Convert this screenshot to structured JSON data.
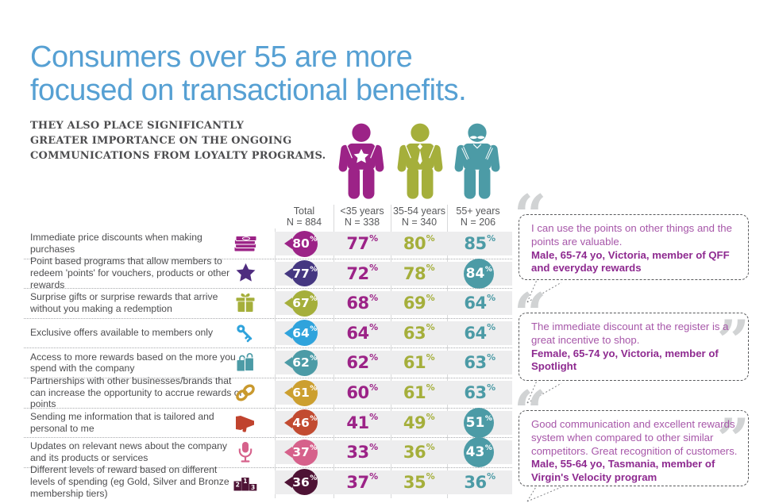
{
  "unit": "%",
  "title": {
    "lines": [
      "Consumers over 55 are more",
      "focused on transactional benefits."
    ],
    "color": "#56A0D3"
  },
  "subtitle_lines": [
    "THEY ALSO PLACE SIGNIFICANTLY",
    "GREATER IMPORTANCE ON THE ONGOING",
    "COMMUNICATIONS FROM LOYALTY PROGRAMS."
  ],
  "personas": [
    {
      "id": "under-35",
      "color": "#9C2387",
      "feature": "star"
    },
    {
      "id": "35-54",
      "color": "#A5AF3B",
      "feature": "tie"
    },
    {
      "id": "55-plus",
      "color": "#4C9BA6",
      "feature": "mustache"
    }
  ],
  "columns": [
    {
      "label": "Total",
      "n": "N = 884"
    },
    {
      "label": "<35 years",
      "n": "N = 338",
      "color": "#9C2387"
    },
    {
      "label": "35-54 years",
      "n": "N = 340",
      "color": "#A5AF3B"
    },
    {
      "label": "55+ years",
      "n": "N = 206",
      "color": "#4C9BA6"
    }
  ],
  "value_colors": [
    "#9C2387",
    "#A5AF3B",
    "#4C9BA6"
  ],
  "highlight_circle_color": "#4C9BA6",
  "rows": [
    {
      "label": "Immediate price discounts when making purchases",
      "icon": "money-icon",
      "icon_color": "#9C2387",
      "badge_color": "#9C2387",
      "total": 80,
      "values": [
        77,
        80,
        85
      ],
      "highlight": null
    },
    {
      "label": "Point based programs that allow members to redeem 'points' for vouchers, products or other rewards",
      "icon": "star-icon",
      "icon_color": "#4F2C7F",
      "badge_color": "#453781",
      "total": 77,
      "values": [
        72,
        78,
        84
      ],
      "highlight": 2
    },
    {
      "label": "Surprise gifts or surprise rewards that arrive without you making a redemption",
      "icon": "gift-icon",
      "icon_color": "#A5AF3B",
      "badge_color": "#A5AF3B",
      "total": 67,
      "values": [
        68,
        69,
        64
      ],
      "highlight": null
    },
    {
      "label": "Exclusive offers available to members only",
      "icon": "key-icon",
      "icon_color": "#2FA3DC",
      "badge_color": "#2FA3DC",
      "total": 64,
      "values": [
        64,
        63,
        64
      ],
      "highlight": null
    },
    {
      "label": "Access to more rewards based on the more you spend with the company",
      "icon": "shopping-bags-icon",
      "icon_color": "#4C9BA6",
      "badge_color": "#4C9BA6",
      "total": 62,
      "values": [
        62,
        61,
        63
      ],
      "highlight": null
    },
    {
      "label": "Partnerships with other businesses/brands that can increase the opportunity to accrue rewards or points",
      "icon": "chain-link-icon",
      "icon_color": "#C9992E",
      "badge_color": "#CC9F2F",
      "total": 61,
      "values": [
        60,
        61,
        63
      ],
      "highlight": null
    },
    {
      "label": "Sending me information that is tailored and personal to me",
      "icon": "megaphone-icon",
      "icon_color": "#C0432E",
      "badge_color": "#C24B31",
      "total": 46,
      "values": [
        41,
        49,
        51
      ],
      "highlight": 2
    },
    {
      "label": "Updates on relevant news about the company and its products or services",
      "icon": "microphone-icon",
      "icon_color": "#D6618B",
      "badge_color": "#D6618B",
      "total": 37,
      "values": [
        33,
        36,
        43
      ],
      "highlight": 2
    },
    {
      "label": "Different levels of reward based on different levels of spending (eg Gold, Silver and Bronze membership tiers)",
      "icon": "podium-icon",
      "icon_color": "#4E1335",
      "badge_color": "#4E1335",
      "total": 36,
      "values": [
        37,
        35,
        36
      ],
      "highlight": null
    }
  ],
  "quotes": [
    {
      "text": "I can use the points on other things and the points are valuable.",
      "attribution": "Male, 65-74 yo, Victoria, member of QFF and everyday rewards"
    },
    {
      "text": "The immediate discount at the register is a great incentive to shop.",
      "attribution": "Female, 65-74 yo, Victoria, member of Spotlight"
    },
    {
      "text": "Good communication and excellent rewards system when compared to other similar competitors. Great recognition of customers.",
      "attribution": "Male, 55-64 yo, Tasmania, member of Virgin's Velocity program"
    }
  ],
  "icons": {
    "open_quote": "“",
    "close_quote": "”"
  },
  "chart_data": {
    "type": "table",
    "title": "Consumers over 55 are more focused on transactional benefits.",
    "subtitle": "They also place significantly greater importance on the ongoing communications from loyalty programs.",
    "unit": "%",
    "categories": [
      "Immediate price discounts when making purchases",
      "Point based programs that allow members to redeem 'points' for vouchers, products or other rewards",
      "Surprise gifts or surprise rewards that arrive without you making a redemption",
      "Exclusive offers available to members only",
      "Access to more rewards based on the more you spend with the company",
      "Partnerships with other businesses/brands that can increase the opportunity to accrue rewards or points",
      "Sending me information that is tailored and personal to me",
      "Updates on relevant news about the company and its products or services",
      "Different levels of reward based on different levels of spending (eg Gold, Silver and Bronze membership tiers)"
    ],
    "series": [
      {
        "name": "Total (N = 884)",
        "values": [
          80,
          77,
          67,
          64,
          62,
          61,
          46,
          37,
          36
        ]
      },
      {
        "name": "<35 years (N = 338)",
        "values": [
          77,
          72,
          68,
          64,
          62,
          60,
          41,
          33,
          37
        ]
      },
      {
        "name": "35-54 years (N = 340)",
        "values": [
          80,
          78,
          69,
          63,
          61,
          61,
          49,
          36,
          35
        ]
      },
      {
        "name": "55+ years (N = 206)",
        "values": [
          85,
          84,
          64,
          64,
          63,
          63,
          51,
          43,
          36
        ]
      }
    ],
    "highlighted_values": [
      {
        "row": 1,
        "column": "55+ years",
        "value": 84
      },
      {
        "row": 6,
        "column": "55+ years",
        "value": 51
      },
      {
        "row": 7,
        "column": "55+ years",
        "value": 43
      }
    ]
  }
}
